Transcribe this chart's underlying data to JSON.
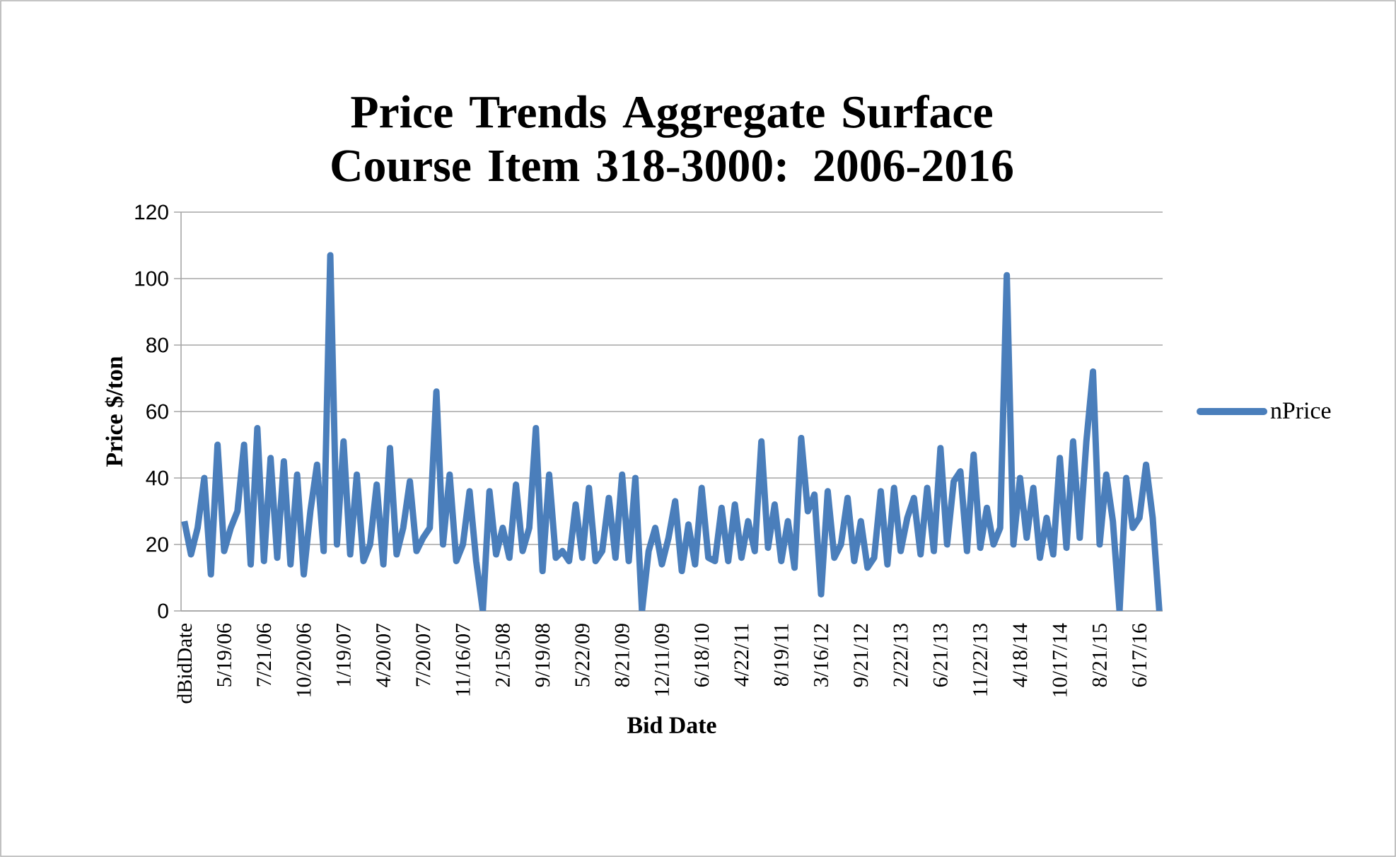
{
  "chart_data": {
    "type": "line",
    "title": "Price Trends Aggregate Surface Course Item 318-3000: 2006-2016",
    "xlabel": "Bid Date",
    "ylabel": "Price $/ton",
    "categories": [
      "dBidDate",
      null,
      null,
      null,
      null,
      null,
      "5/19/06",
      null,
      null,
      null,
      null,
      null,
      "7/21/06",
      null,
      null,
      null,
      null,
      null,
      "10/20/06",
      null,
      null,
      null,
      null,
      null,
      "1/19/07",
      null,
      null,
      null,
      null,
      null,
      "4/20/07",
      null,
      null,
      null,
      null,
      null,
      "7/20/07",
      null,
      null,
      null,
      null,
      null,
      "11/16/07",
      null,
      null,
      null,
      null,
      null,
      "2/15/08",
      null,
      null,
      null,
      null,
      null,
      "9/19/08",
      null,
      null,
      null,
      null,
      null,
      "5/22/09",
      null,
      null,
      null,
      null,
      null,
      "8/21/09",
      null,
      null,
      null,
      null,
      null,
      "12/11/09",
      null,
      null,
      null,
      null,
      null,
      "6/18/10",
      null,
      null,
      null,
      null,
      null,
      "4/22/11",
      null,
      null,
      null,
      null,
      null,
      "8/19/11",
      null,
      null,
      null,
      null,
      null,
      "3/16/12",
      null,
      null,
      null,
      null,
      null,
      "9/21/12",
      null,
      null,
      null,
      null,
      null,
      "2/22/13",
      null,
      null,
      null,
      null,
      null,
      "6/21/13",
      null,
      null,
      null,
      null,
      null,
      "11/22/13",
      null,
      null,
      null,
      null,
      null,
      "4/18/14",
      null,
      null,
      null,
      null,
      null,
      "10/17/14",
      null,
      null,
      null,
      null,
      null,
      "8/21/15",
      null,
      null,
      null,
      null,
      null,
      "6/17/16",
      null,
      null,
      null
    ],
    "series": [
      {
        "name": "nPrice",
        "color": "#4a7ebb",
        "values": [
          27,
          17,
          25,
          40,
          11,
          50,
          18,
          25,
          30,
          50,
          14,
          55,
          15,
          46,
          16,
          45,
          14,
          41,
          11,
          30,
          44,
          18,
          107,
          20,
          51,
          17,
          41,
          15,
          20,
          38,
          14,
          49,
          17,
          25,
          39,
          18,
          22,
          25,
          66,
          20,
          41,
          15,
          20,
          36,
          15,
          0,
          36,
          17,
          25,
          16,
          38,
          18,
          25,
          55,
          12,
          41,
          16,
          18,
          15,
          32,
          16,
          37,
          15,
          18,
          34,
          16,
          41,
          15,
          40,
          0,
          18,
          25,
          14,
          22,
          33,
          12,
          26,
          14,
          37,
          16,
          15,
          31,
          15,
          32,
          16,
          27,
          18,
          51,
          19,
          32,
          15,
          27,
          13,
          52,
          30,
          35,
          5,
          36,
          16,
          20,
          34,
          15,
          27,
          13,
          16,
          36,
          14,
          37,
          18,
          28,
          34,
          17,
          37,
          18,
          49,
          20,
          39,
          42,
          18,
          47,
          19,
          31,
          20,
          25,
          101,
          20,
          40,
          22,
          37,
          16,
          28,
          17,
          46,
          19,
          51,
          22,
          51,
          72,
          20,
          41,
          27,
          0,
          40,
          25,
          28,
          44,
          28,
          0
        ]
      }
    ],
    "ylim": [
      0,
      120
    ],
    "yticks": [
      0,
      20,
      40,
      60,
      80,
      100,
      120
    ],
    "grid": "y",
    "legend": "right",
    "marker": "none",
    "line_style": "solid"
  }
}
